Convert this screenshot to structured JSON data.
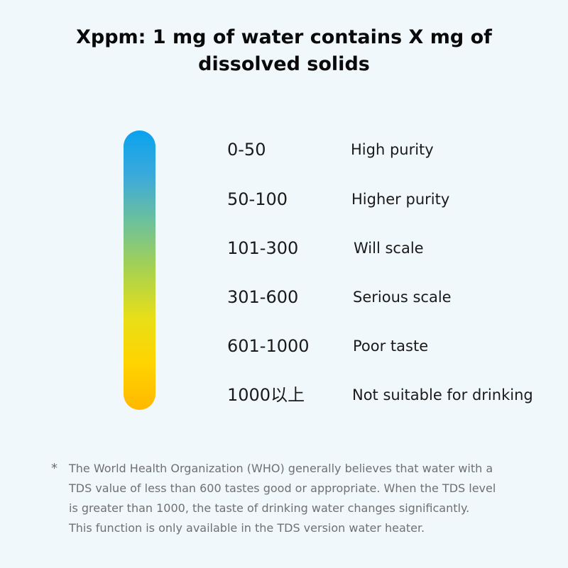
{
  "title": {
    "line1": "Xppm: 1 mg of water contains X mg of",
    "line2": "dissolved solids"
  },
  "scale": {
    "gradient_colors": [
      "#0aa2ef",
      "#3eaad8",
      "#6ec19a",
      "#a8d24f",
      "#e8df18",
      "#ffd400",
      "#ffb800"
    ],
    "rows": [
      {
        "range": "0-50",
        "description": "High purity"
      },
      {
        "range": "50-100",
        "description": "Higher purity"
      },
      {
        "range": "101-300",
        "description": "Will scale"
      },
      {
        "range": "301-600",
        "description": "Serious scale"
      },
      {
        "range": "601-1000",
        "description": "Poor taste"
      },
      {
        "range": "1000以上",
        "description": "Not suitable for drinking"
      }
    ]
  },
  "note": {
    "marker": "*",
    "lines": [
      "The World Health Organization (WHO) generally believes that water with a",
      "TDS value of less than 600 tastes good or appropriate. When the TDS level",
      "is greater than 1000, the taste of drinking water changes significantly.",
      "This function is only available in the TDS version water heater."
    ]
  }
}
